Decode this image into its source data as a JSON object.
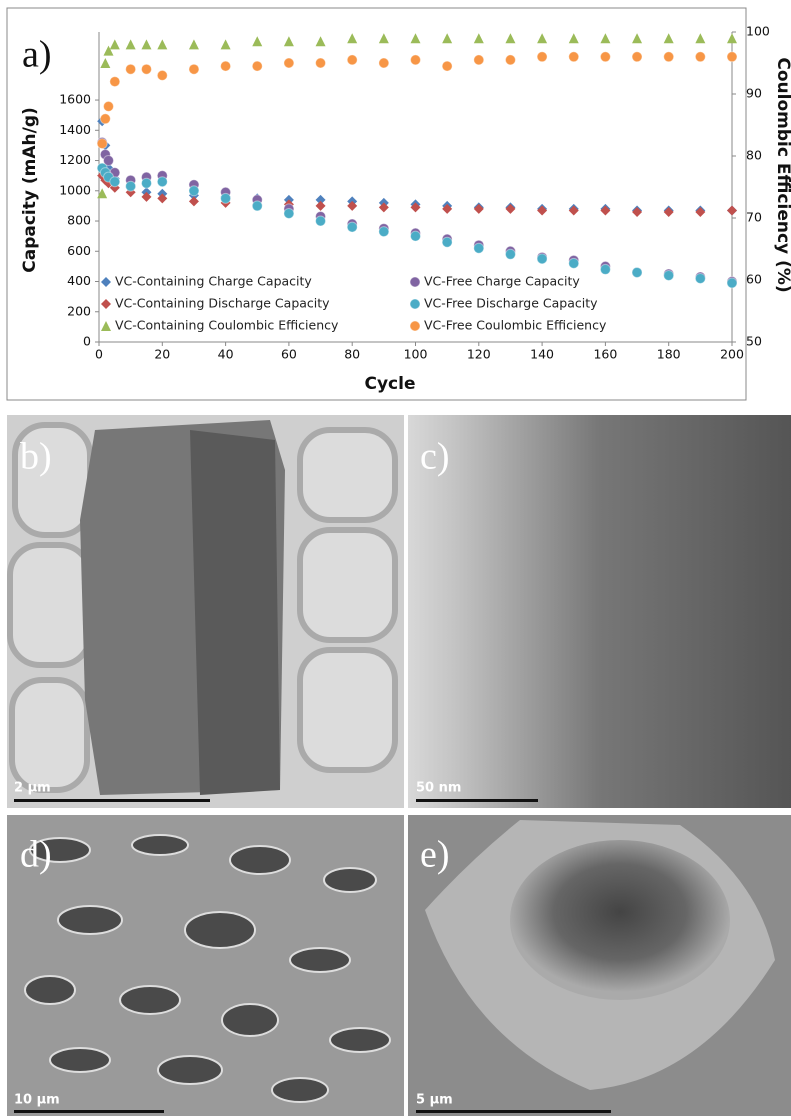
{
  "chart_data": {
    "type": "scatter",
    "panel_label": "a)",
    "x_label": "Cycle",
    "y_label": "Capacity (mAh/g)",
    "y2_label": "Coulombic  Efficiency (%)",
    "x": [
      1,
      2,
      3,
      5,
      10,
      15,
      20,
      30,
      40,
      50,
      60,
      70,
      80,
      90,
      100,
      110,
      120,
      130,
      140,
      150,
      160,
      170,
      180,
      190,
      200
    ],
    "xlim": [
      0,
      200
    ],
    "xticks": [
      0,
      20,
      40,
      60,
      80,
      100,
      120,
      140,
      160,
      180,
      200
    ],
    "ylim": [
      0,
      2050
    ],
    "yticks": [
      0,
      200,
      400,
      600,
      800,
      1000,
      1200,
      1400,
      1600
    ],
    "y2lim": [
      50,
      100
    ],
    "y2ticks": [
      50,
      60,
      70,
      80,
      90,
      100
    ],
    "series": [
      {
        "name": "VC-Containing Charge Capacity",
        "color": "#4f81bd",
        "marker": "diamond",
        "values": [
          1460,
          1300,
          1150,
          1080,
          1020,
          990,
          980,
          970,
          960,
          950,
          940,
          940,
          930,
          920,
          910,
          900,
          890,
          890,
          880,
          880,
          880,
          870,
          870,
          870,
          870
        ]
      },
      {
        "name": "VC-Containing Discharge Capacity",
        "color": "#c0504d",
        "marker": "diamond",
        "values": [
          1100,
          1070,
          1050,
          1020,
          990,
          960,
          950,
          930,
          920,
          910,
          910,
          900,
          900,
          890,
          890,
          880,
          880,
          880,
          870,
          870,
          870,
          860,
          860,
          860,
          870
        ]
      },
      {
        "name": "VC-Containing Coulombic Efficiency",
        "color": "#9bbb59",
        "marker": "triangle",
        "axis": "y2",
        "values": [
          74,
          95,
          97,
          98,
          98,
          98,
          98,
          98,
          98,
          98.5,
          98.5,
          98.5,
          99,
          99,
          99,
          99,
          99,
          99,
          99,
          99,
          99,
          99,
          99,
          99,
          99
        ]
      },
      {
        "name": "VC-Free Charge Capacity",
        "color": "#8064a2",
        "marker": "circle",
        "values": [
          1320,
          1240,
          1200,
          1120,
          1070,
          1090,
          1100,
          1040,
          990,
          940,
          880,
          830,
          780,
          750,
          720,
          680,
          640,
          600,
          560,
          540,
          500,
          460,
          450,
          430,
          400
        ]
      },
      {
        "name": "VC-Free Discharge Capacity",
        "color": "#4bacc6",
        "marker": "circle",
        "values": [
          1150,
          1120,
          1090,
          1060,
          1030,
          1050,
          1060,
          1000,
          950,
          900,
          850,
          800,
          760,
          730,
          700,
          660,
          620,
          580,
          550,
          520,
          480,
          460,
          440,
          420,
          390
        ]
      },
      {
        "name": "VC-Free Coulombic Efficiency",
        "color": "#f79646",
        "marker": "circle",
        "axis": "y2",
        "values": [
          82,
          86,
          88,
          92,
          94,
          94,
          93,
          94,
          94.5,
          94.5,
          95,
          95,
          95.5,
          95,
          95.5,
          94.5,
          95.5,
          95.5,
          96,
          96,
          96,
          96,
          96,
          96,
          96
        ]
      }
    ]
  },
  "panels": [
    {
      "label": "b)",
      "scale_bar": "2 µm"
    },
    {
      "label": "c)",
      "scale_bar": "50 nm"
    },
    {
      "label": "d)",
      "scale_bar": "10 µm"
    },
    {
      "label": "e)",
      "scale_bar": "5 µm"
    }
  ]
}
